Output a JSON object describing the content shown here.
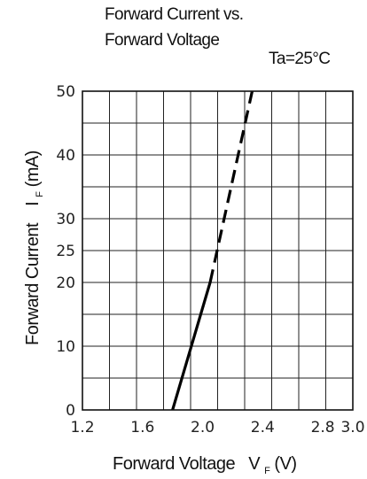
{
  "chart_data": {
    "type": "line",
    "title_lines": [
      "Forward Current vs.",
      "Forward Voltage"
    ],
    "condition": "Ta=25°C",
    "xlabel": {
      "main": "Forward Voltage",
      "symbol": "V",
      "sub": "F",
      "unit": "(V)"
    },
    "ylabel": {
      "main": "Forward Current",
      "symbol": "I",
      "sub": "F",
      "unit": "(mA)"
    },
    "xlim": [
      1.2,
      3.0
    ],
    "ylim": [
      0,
      50
    ],
    "x_ticks": [
      "1.2",
      "1.6",
      "2.0",
      "2.4",
      "2.8",
      "3.0"
    ],
    "y_ticks": [
      "0",
      "10",
      "20",
      "25",
      "30",
      "40",
      "50"
    ],
    "grid": true,
    "series": [
      {
        "style": "solid",
        "points": [
          [
            1.8,
            0
          ],
          [
            2.05,
            20
          ]
        ]
      },
      {
        "style": "dashed",
        "points": [
          [
            2.05,
            20
          ],
          [
            2.33,
            50
          ]
        ]
      }
    ]
  }
}
